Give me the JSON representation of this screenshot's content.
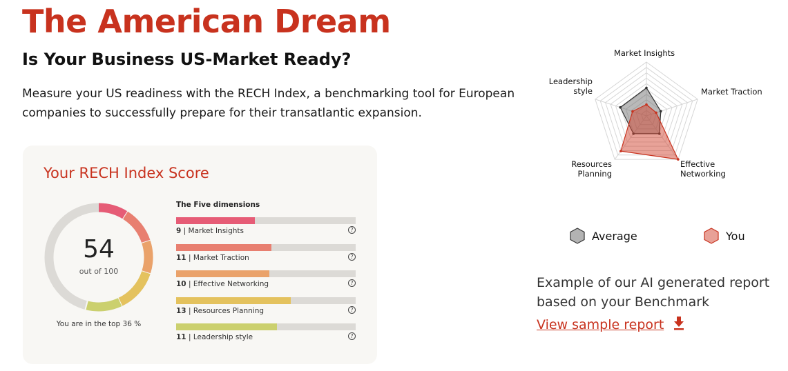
{
  "header": {
    "title": "The American Dream",
    "subtitle": "Is Your Business US-Market Ready?",
    "description": "Measure your US readiness with the RECH Index, a benchmarking tool for European companies to successfully prepare for their transatlantic expansion."
  },
  "card": {
    "title": "Your RECH Index Score",
    "score": "54",
    "out_of": "out of 100",
    "top_text": "You are in the top 36 %",
    "dimensions_title": "The Five dimensions",
    "dimensions": [
      {
        "score": "9",
        "label": "Market Insights",
        "fill": 44,
        "color": "#e65c76"
      },
      {
        "score": "11",
        "label": "Market Traction",
        "fill": 53,
        "color": "#e87f70"
      },
      {
        "score": "10",
        "label": "Effective Networking",
        "fill": 52,
        "color": "#eaa26a"
      },
      {
        "score": "13",
        "label": "Resources Planning",
        "fill": 64,
        "color": "#e4c25e"
      },
      {
        "score": "11",
        "label": "Leadership style",
        "fill": 56,
        "color": "#cbd06e"
      }
    ]
  },
  "chart_data": {
    "type": "radar",
    "axes": [
      "Market Insights",
      "Market Traction",
      "Effective Networking",
      "Resources Planning",
      "Leadership style"
    ],
    "range": [
      0,
      10
    ],
    "grid_rings": 10,
    "series": [
      {
        "name": "Average",
        "values": [
          5.2,
          2.8,
          4.1,
          4.1,
          5.1
        ],
        "color": "#888888"
      },
      {
        "name": "You",
        "values": [
          2.1,
          1.9,
          10,
          8.1,
          2.7
        ],
        "color": "#c8321e"
      }
    ]
  },
  "legend": {
    "average": "Average",
    "you": "You"
  },
  "report": {
    "text": "Example of our AI generated report based on your Benchmark",
    "link": "View sample report",
    "icon": "download-icon"
  }
}
